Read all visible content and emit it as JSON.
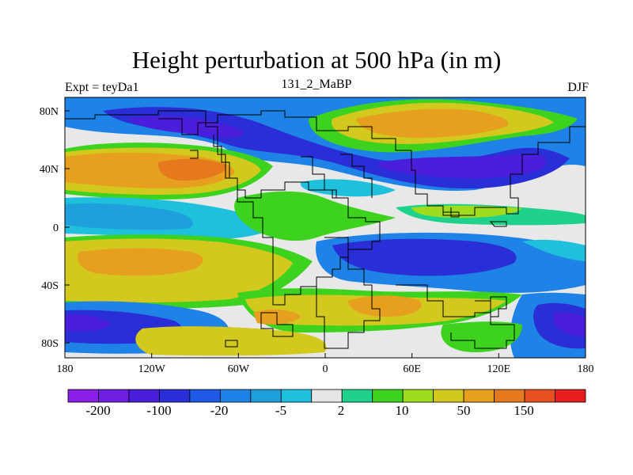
{
  "title": "Height perturbation at 500 hPa (in m)",
  "left_label": "Expt = teyDa1",
  "center_label": "131_2_MaBP",
  "right_label": "DJF",
  "lat_ticks": [
    "80N",
    "40N",
    "0",
    "40S",
    "80S"
  ],
  "lon_ticks": [
    "180",
    "120W",
    "60W",
    "0",
    "60E",
    "120E",
    "180"
  ],
  "colorbar": {
    "colors": [
      "#8a1ee6",
      "#6e1ee0",
      "#4b1edc",
      "#2a2ed6",
      "#1e5ae6",
      "#1e82e6",
      "#1ea0dc",
      "#1ec0dc",
      "#e6e6e6",
      "#1ed28c",
      "#3cd21e",
      "#a0dc1e",
      "#d2c81e",
      "#e6a01e",
      "#e6781e",
      "#e6501e",
      "#e61e1e"
    ],
    "labels": [
      "-200",
      "-100",
      "-20",
      "-5",
      "2",
      "10",
      "50",
      "150"
    ]
  }
}
